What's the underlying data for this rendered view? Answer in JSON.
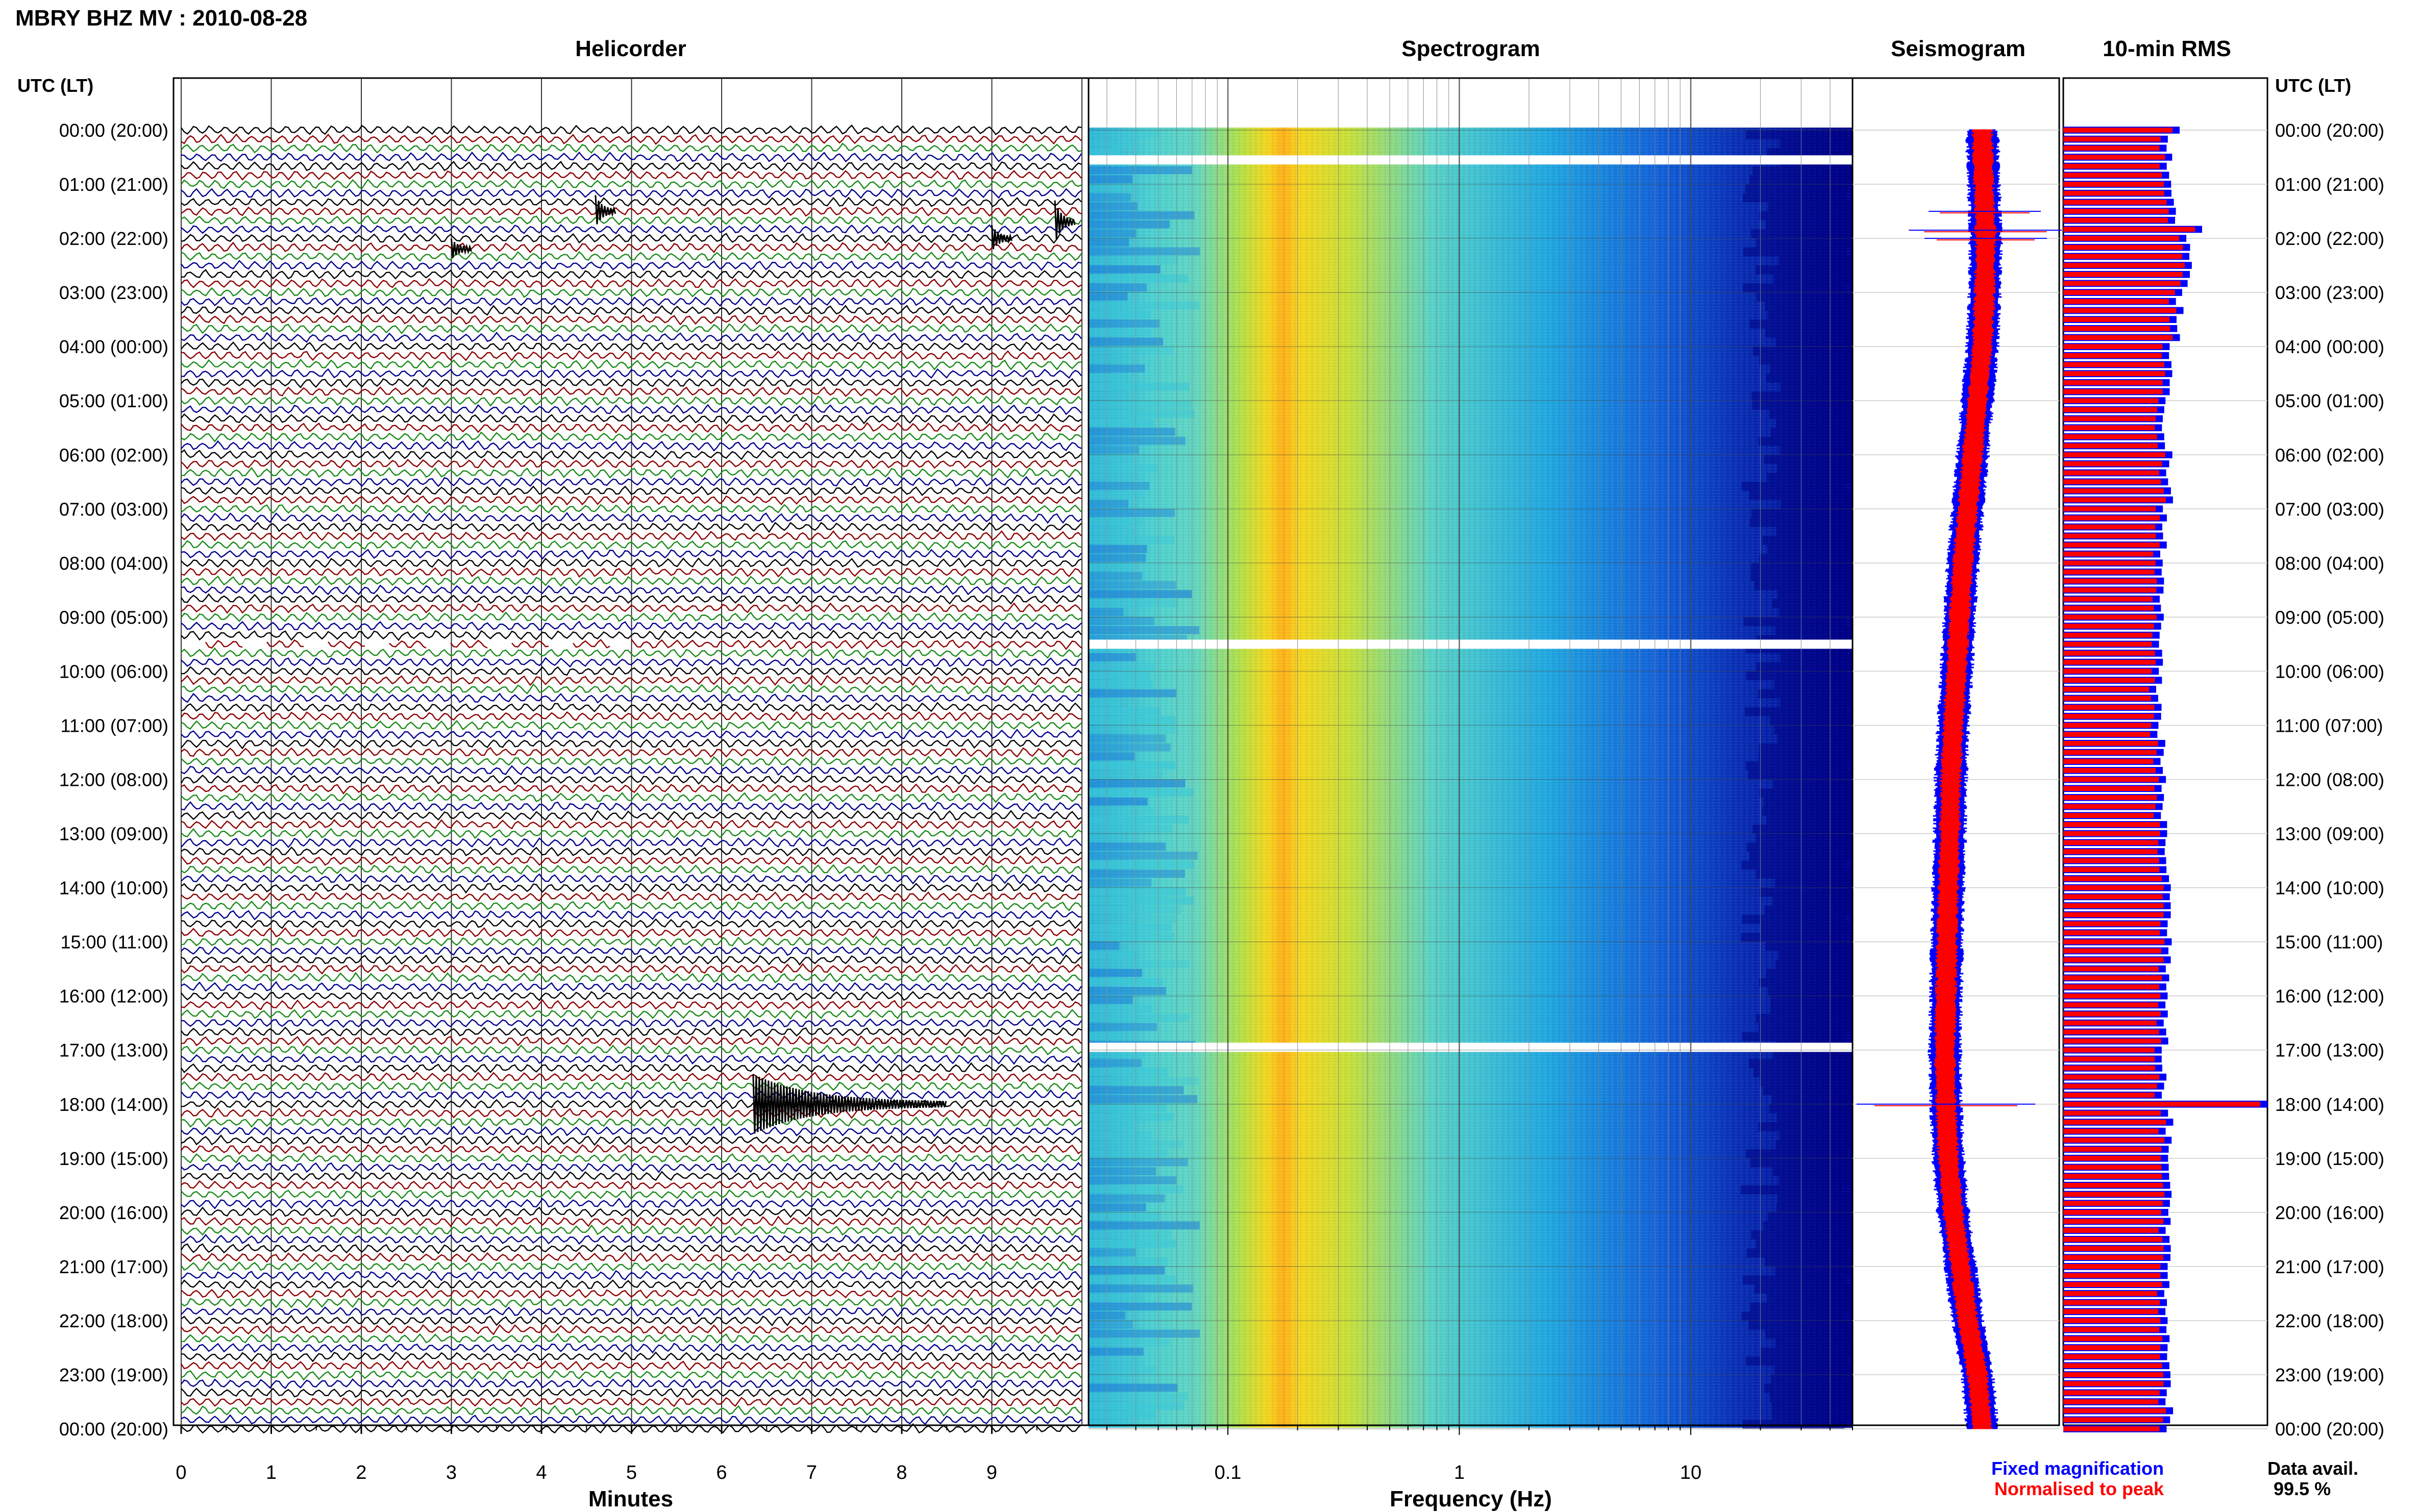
{
  "header": {
    "station_title": "MBRY BHZ MV : 2010-08-28",
    "utc_label_left": "UTC (LT)",
    "utc_label_right": "UTC (LT)"
  },
  "panels": {
    "helicorder": "Helicorder",
    "spectrogram": "Spectrogram",
    "seismogram": "Seismogram",
    "rms": "10-min RMS"
  },
  "legend": {
    "fixed": "Fixed magnification",
    "normalised": "Normalised to peak",
    "fixed_color": "#0000ff",
    "normalised_color": "#ff0000"
  },
  "data_avail": {
    "label": "Data avail.",
    "value": "99.5 %"
  },
  "colors": {
    "trace_cycle": [
      "#000000",
      "#8b0000",
      "#1a8a1a",
      "#00008b"
    ],
    "spectrogram_scale": [
      "#00008b",
      "#0b3bd6",
      "#1aa0e0",
      "#3ad6c8",
      "#a6e05a",
      "#f2e01a",
      "#ff8c1a",
      "#e21a1a"
    ]
  },
  "chart_data": {
    "type": "heatmap",
    "time_labels": [
      "00:00 (20:00)",
      "01:00 (21:00)",
      "02:00 (22:00)",
      "03:00 (23:00)",
      "04:00 (00:00)",
      "05:00 (01:00)",
      "06:00 (02:00)",
      "07:00 (03:00)",
      "08:00 (04:00)",
      "09:00 (05:00)",
      "10:00 (06:00)",
      "11:00 (07:00)",
      "12:00 (08:00)",
      "13:00 (09:00)",
      "14:00 (10:00)",
      "15:00 (11:00)",
      "16:00 (12:00)",
      "17:00 (13:00)",
      "18:00 (14:00)",
      "19:00 (15:00)",
      "20:00 (16:00)",
      "21:00 (17:00)",
      "22:00 (18:00)",
      "23:00 (19:00)",
      "00:00 (20:00)"
    ],
    "helicorder": {
      "xlabel": "Minutes",
      "xticks": [
        "0",
        "1",
        "2",
        "3",
        "4",
        "5",
        "6",
        "7",
        "8",
        "9"
      ],
      "xlim": [
        0,
        10
      ],
      "lines_per_hour": 6,
      "events": [
        {
          "hour": 1.5,
          "minute": 4.6,
          "amp": 0.5
        },
        {
          "hour": 1.7,
          "minute": 9.7,
          "amp": 0.7
        },
        {
          "hour": 2.0,
          "minute": 9.0,
          "amp": 0.4
        },
        {
          "hour": 2.2,
          "minute": 3.0,
          "amp": 0.3
        },
        {
          "hour": 18.0,
          "minute": 6.35,
          "amp": 1.0
        }
      ],
      "gap": {
        "hour": 9.5,
        "from_minute": 0,
        "to_minute": 5.0
      }
    },
    "spectrogram": {
      "xlabel": "Frequency (Hz)",
      "xscale": "log",
      "xlim": [
        0.025,
        50
      ],
      "xticks": [
        0.1,
        1,
        10
      ],
      "xtick_labels": [
        "0.1",
        "1",
        "10"
      ],
      "peak_band_hz": [
        0.15,
        0.35
      ],
      "gaps_hours": [
        0.55,
        9.5,
        16.95
      ]
    },
    "seismogram": {
      "series": [
        {
          "name": "Fixed magnification",
          "color": "#0000ff"
        },
        {
          "name": "Normalised to peak",
          "color": "#ff0000"
        }
      ],
      "center_offset_by_hour": [
        0.55,
        0.58,
        0.62,
        0.6,
        0.55,
        0.45,
        0.35,
        0.25,
        0.15,
        0.08,
        0.02,
        -0.05,
        -0.1,
        -0.12,
        -0.15,
        -0.18,
        -0.2,
        -0.22,
        -0.2,
        -0.15,
        -0.05,
        0.1,
        0.25,
        0.45,
        0.55
      ]
    },
    "rms": {
      "bars_per_hour": 6,
      "xlim": [
        0,
        1
      ],
      "hourly_level": [
        0.5,
        0.52,
        0.6,
        0.55,
        0.5,
        0.48,
        0.5,
        0.47,
        0.46,
        0.46,
        0.45,
        0.46,
        0.47,
        0.49,
        0.5,
        0.5,
        0.49,
        0.48,
        0.5,
        0.5,
        0.5,
        0.49,
        0.5,
        0.5,
        0.5
      ],
      "peaks": [
        {
          "hour": 0.0,
          "value": 0.55
        },
        {
          "hour": 1.85,
          "value": 0.66
        },
        {
          "hour": 2.7,
          "value": 0.6
        },
        {
          "hour": 18.0,
          "value": 0.98
        }
      ]
    }
  }
}
